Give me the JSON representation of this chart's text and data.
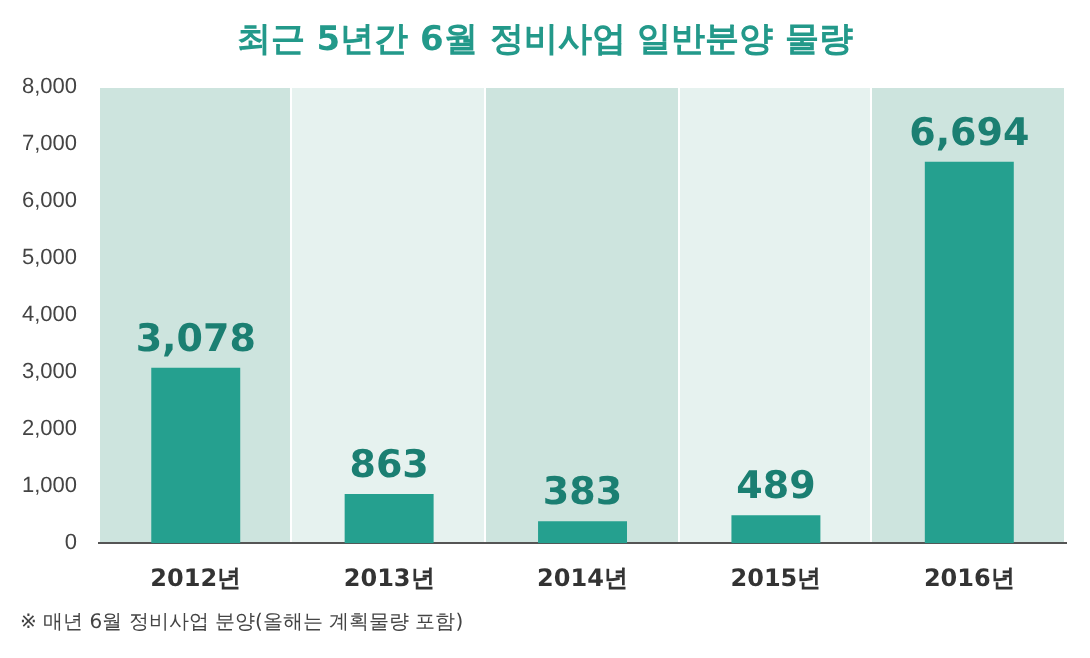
{
  "chart_data": {
    "type": "bar",
    "title": "최근 5년간 6월 정비사업 일반분양 물량",
    "categories": [
      "2012년",
      "2013년",
      "2014년",
      "2015년",
      "2016년"
    ],
    "values": [
      3078,
      863,
      383,
      489,
      6694
    ],
    "value_labels": [
      "3,078",
      "863",
      "383",
      "489",
      "6,694"
    ],
    "color": "#25a08f",
    "ylim": [
      0,
      8000
    ],
    "yticks": [
      0,
      {
        "value": 1000,
        "label": "1,000"
      },
      {
        "value": 2000,
        "label": "2,000"
      },
      {
        "value": 3000,
        "label": "3,000"
      },
      {
        "value": 4000,
        "label": "4,000"
      },
      {
        "value": 5000,
        "label": "5,000"
      },
      {
        "value": 6000,
        "label": "6,000"
      },
      {
        "value": 7000,
        "label": "7,000"
      },
      {
        "value": 8000,
        "label": "8,000"
      }
    ],
    "annotations": [
      "※ 매년 6월 정비사업 분양(올해는 계획물량 포함)"
    ]
  }
}
